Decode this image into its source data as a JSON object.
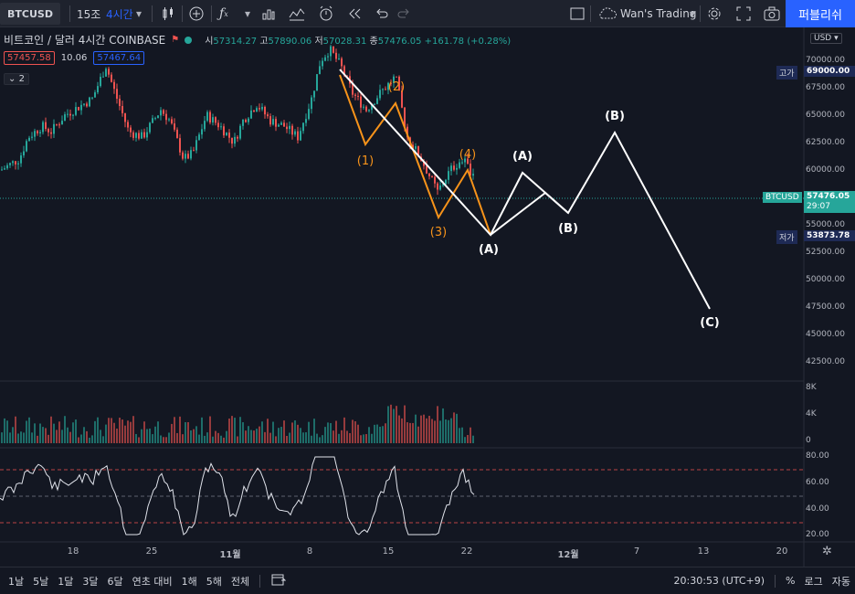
{
  "toolbar": {
    "symbol": "BTCUSD",
    "interval_fav": "15조",
    "interval": "4시간",
    "layout_name": "Wan's Trading",
    "publish_label": "퍼블리쉬"
  },
  "legend": {
    "title": "비트코인 / 달러  4시간  COINBASE",
    "open_label": "시",
    "open": "57314.27",
    "high_label": "고",
    "high": "57890.06",
    "low_label": "저",
    "low": "57028.31",
    "close_label": "종",
    "close": "57476.05",
    "change": "+161.78 (+0.28%)",
    "bid": "57457.58",
    "spread": "10.06",
    "ask": "57467.64",
    "indicators_count": "2"
  },
  "price_axis": {
    "currency": "USD",
    "ticks": [
      "70000.00",
      "67500.00",
      "65000.00",
      "62500.00",
      "60000.00",
      "57500.00",
      "55000.00",
      "52500.00",
      "50000.00",
      "47500.00",
      "45000.00",
      "42500.00"
    ],
    "high_label": "고가",
    "high_value": "69000.00",
    "low_label": "저가",
    "low_value": "53873.78",
    "last_symbol": "BTCUSD",
    "last_value": "57476.05",
    "countdown": "29:07"
  },
  "volume_axis": {
    "ticks": [
      "8K",
      "4K",
      "0"
    ]
  },
  "rsi_axis": {
    "ticks": [
      "80.00",
      "60.00",
      "40.00",
      "20.00"
    ]
  },
  "time_axis": {
    "labels": [
      "18",
      "25",
      "11월",
      "8",
      "15",
      "22",
      "12월",
      "7",
      "13",
      "20"
    ]
  },
  "wave_labels": {
    "orange": [
      "(1)",
      "(2)",
      "(3)",
      "(4)"
    ],
    "white": [
      "(A)",
      "(A)",
      "(B)",
      "(B)",
      "(C)"
    ]
  },
  "bottom_bar": {
    "ranges": [
      "1날",
      "5날",
      "1달",
      "3달",
      "6달",
      "연초 대비",
      "1해",
      "5해",
      "전체"
    ],
    "time": "20:30:53 (UTC+9)",
    "percent": "%",
    "log": "로그",
    "auto": "자동"
  },
  "colors": {
    "bg": "#131722",
    "up": "#26a69a",
    "down": "#ef5350",
    "wave_orange": "#f7931a",
    "publish": "#2962ff"
  }
}
